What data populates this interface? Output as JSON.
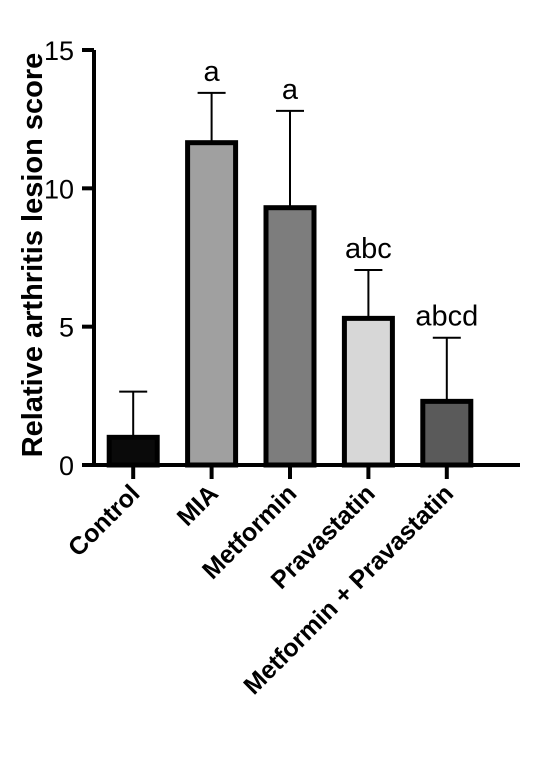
{
  "chart_data": {
    "type": "bar",
    "ylabel": "Relative arthritis lesion score",
    "xlabel": "",
    "title": "",
    "ylim": [
      0,
      15
    ],
    "yticks": [
      0,
      5,
      10,
      15
    ],
    "yticks_labels": [
      "0",
      "5",
      "10",
      "15"
    ],
    "categories": [
      "Control",
      "MIA",
      "Metformin",
      "Pravastatin",
      "Metformin + Pravastatin"
    ],
    "values": [
      1.0,
      11.65,
      9.3,
      5.3,
      2.3
    ],
    "error_upper": [
      1.65,
      1.8,
      3.5,
      1.75,
      2.3
    ],
    "significance": [
      "",
      "a",
      "a",
      "abc",
      "abcd"
    ],
    "bar_colors": [
      "#0a0a0a",
      "#a0a0a0",
      "#7d7d7d",
      "#d7d7d7",
      "#5a5a5a"
    ],
    "grid": false,
    "legend": "none"
  }
}
